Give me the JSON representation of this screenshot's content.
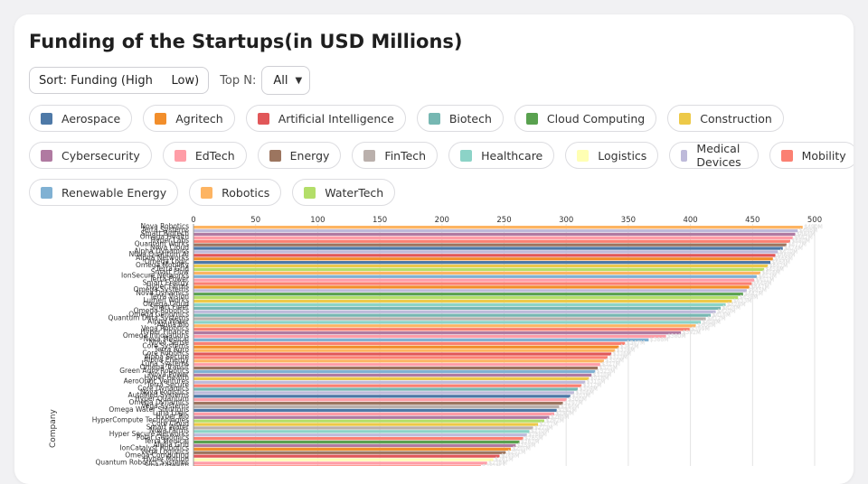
{
  "title": "Funding of the Startups(in USD Millions)",
  "controls": {
    "sort_label": "Sort: Funding (High     Low)",
    "topn_label": "Top N:",
    "topn_value": "All"
  },
  "legend": [
    {
      "name": "Aerospace",
      "color": "#4e79a7"
    },
    {
      "name": "Agritech",
      "color": "#f28e2b"
    },
    {
      "name": "Artificial Intelligence",
      "color": "#e15759"
    },
    {
      "name": "Biotech",
      "color": "#76b7b2"
    },
    {
      "name": "Cloud Computing",
      "color": "#59a14f"
    },
    {
      "name": "Construction",
      "color": "#edc948"
    },
    {
      "name": "Cybersecurity",
      "color": "#b07aa1"
    },
    {
      "name": "EdTech",
      "color": "#ff9da7"
    },
    {
      "name": "Energy",
      "color": "#9c755f"
    },
    {
      "name": "FinTech",
      "color": "#bab0ac"
    },
    {
      "name": "Healthcare",
      "color": "#8cd3c7"
    },
    {
      "name": "Logistics",
      "color": "#ffffb3"
    },
    {
      "name": "Medical Devices",
      "color": "#bebada"
    },
    {
      "name": "Mobility",
      "color": "#fb8072"
    },
    {
      "name": "Renewable Energy",
      "color": "#80b1d3"
    },
    {
      "name": "Robotics",
      "color": "#fdb462"
    },
    {
      "name": "WaterTech",
      "color": "#b3de69"
    }
  ],
  "chart_data": {
    "type": "bar",
    "orientation": "horizontal",
    "title": "Funding of the Startups(in USD Millions)",
    "xlabel": "",
    "ylabel": "Company",
    "xlim": [
      0,
      500
    ],
    "xticks": [
      0,
      50,
      100,
      150,
      200,
      250,
      300,
      350,
      400,
      450,
      500
    ],
    "sort": "descending",
    "series": [
      {
        "name": "Nova Robotics",
        "industry": "Robotics",
        "value": 490
      },
      {
        "name": "Terra Systems",
        "industry": "Medical Devices",
        "value": 486
      },
      {
        "name": "Smart Biotech",
        "industry": "Cybersecurity",
        "value": 484
      },
      {
        "name": "Omega Health",
        "industry": "EdTech",
        "value": 482
      },
      {
        "name": "Hyper Labs",
        "industry": "Mobility",
        "value": 480
      },
      {
        "name": "Quantum Works",
        "industry": "Energy",
        "value": 477
      },
      {
        "name": "Nova Cloud",
        "industry": "Aerospace",
        "value": 474
      },
      {
        "name": "Alpha Dynamics",
        "industry": "Medical Devices",
        "value": 470
      },
      {
        "name": "Nova Quantum AI",
        "industry": "Artificial Intelligence",
        "value": 468
      },
      {
        "name": "Alpha Networks",
        "industry": "Agritech",
        "value": 466
      },
      {
        "name": "Omega Logic",
        "industry": "Aerospace",
        "value": 464
      },
      {
        "name": "Omega Mobility",
        "industry": "Construction",
        "value": 462
      },
      {
        "name": "Terra Grid",
        "industry": "WaterTech",
        "value": 459
      },
      {
        "name": "Smart Flow",
        "industry": "Robotics",
        "value": 456
      },
      {
        "name": "IonSecure Networks",
        "industry": "Renewable Energy",
        "value": 453
      },
      {
        "name": "Terra Power",
        "industry": "EdTech",
        "value": 451
      },
      {
        "name": "Smart Energy",
        "industry": "Mobility",
        "value": 449
      },
      {
        "name": "Hyper Farms",
        "industry": "Agritech",
        "value": 447
      },
      {
        "name": "Omega Systems",
        "industry": "Medical Devices",
        "value": 445
      },
      {
        "name": "Nova Dynamics",
        "industry": "Cloud Computing",
        "value": 442
      },
      {
        "name": "Terra Vision",
        "industry": "WaterTech",
        "value": 438
      },
      {
        "name": "Lumen Works",
        "industry": "Construction",
        "value": 433
      },
      {
        "name": "Omega Cloud",
        "industry": "Healthcare",
        "value": 428
      },
      {
        "name": "Smart Fleet",
        "industry": "Biotech",
        "value": 424
      },
      {
        "name": "Omega Robotics",
        "industry": "Medical Devices",
        "value": 420
      },
      {
        "name": "Omega Genomics",
        "industry": "Biotech",
        "value": 416
      },
      {
        "name": "Quantum Data Systems",
        "industry": "FinTech",
        "value": 412
      },
      {
        "name": "Alpha Water",
        "industry": "Healthcare",
        "value": 408
      },
      {
        "name": "Alpha Bio",
        "industry": "Robotics",
        "value": 404
      },
      {
        "name": "Vega Robotics",
        "industry": "Mobility",
        "value": 399
      },
      {
        "name": "Hyper Finance",
        "industry": "Cybersecurity",
        "value": 392
      },
      {
        "name": "Omega Innovations",
        "industry": "EdTech",
        "value": 380
      },
      {
        "name": "Nova Medical",
        "industry": "Renewable Energy",
        "value": 366
      },
      {
        "name": "Nova Sense",
        "industry": "Mobility",
        "value": 347
      },
      {
        "name": "Core Systems",
        "industry": "Agritech",
        "value": 342
      },
      {
        "name": "Terra Agro",
        "industry": "Robotics",
        "value": 339
      },
      {
        "name": "Core Robotics",
        "industry": "Artificial Intelligence",
        "value": 336
      },
      {
        "name": "Alpha Secure",
        "industry": "Mobility",
        "value": 333
      },
      {
        "name": "Alpha Energy",
        "industry": "Robotics",
        "value": 330
      },
      {
        "name": "Luna Systems",
        "industry": "EdTech",
        "value": 327
      },
      {
        "name": "Omega Transit",
        "industry": "Energy",
        "value": 325
      },
      {
        "name": "Green Agro Robotics",
        "industry": "Renewable Energy",
        "value": 323
      },
      {
        "name": "Nova Power",
        "industry": "Cybersecurity",
        "value": 320
      },
      {
        "name": "Hyper Health",
        "industry": "Construction",
        "value": 318
      },
      {
        "name": "AeroOptic Ventures",
        "industry": "Medical Devices",
        "value": 315
      },
      {
        "name": "Terra Secure",
        "industry": "Mobility",
        "value": 312
      },
      {
        "name": "Core Dynamics",
        "industry": "Biotech",
        "value": 309
      },
      {
        "name": "Nova Logistics",
        "industry": "Medical Devices",
        "value": 306
      },
      {
        "name": "AutoMed Systems",
        "industry": "Aerospace",
        "value": 303
      },
      {
        "name": "Hyper Quantum",
        "industry": "EdTech",
        "value": 300
      },
      {
        "name": "Omega Dynamics",
        "industry": "Energy",
        "value": 297
      },
      {
        "name": "Vega Systems",
        "industry": "FinTech",
        "value": 294
      },
      {
        "name": "Omega Water Solutions",
        "industry": "Aerospace",
        "value": 292
      },
      {
        "name": "Luna Logic",
        "industry": "EdTech",
        "value": 290
      },
      {
        "name": "Hyper Bio",
        "industry": "Cybersecurity",
        "value": 286
      },
      {
        "name": "HyperCompute Technologies",
        "industry": "WaterTech",
        "value": 282
      },
      {
        "name": "Core Cloud",
        "industry": "Construction",
        "value": 277
      },
      {
        "name": "Smart Water",
        "industry": "FinTech",
        "value": 273
      },
      {
        "name": "Nova Farms",
        "industry": "Healthcare",
        "value": 270
      },
      {
        "name": "Hyper Secure Networks",
        "industry": "Medical Devices",
        "value": 268
      },
      {
        "name": "Polar Genomics",
        "industry": "Mobility",
        "value": 265
      },
      {
        "name": "Terra Medical",
        "industry": "Cloud Computing",
        "value": 262
      },
      {
        "name": "Alpha Grid",
        "industry": "Cybersecurity",
        "value": 259
      },
      {
        "name": "IonCatalyst Robotics",
        "industry": "Agritech",
        "value": 255
      },
      {
        "name": "Vega Logistics",
        "industry": "Energy",
        "value": 251
      },
      {
        "name": "Omega Computing",
        "industry": "Artificial Intelligence",
        "value": 246
      },
      {
        "name": "Hyper Motion",
        "industry": "Logistics",
        "value": 241
      },
      {
        "name": "Quantum Robotics Systems",
        "industry": "EdTech",
        "value": 236
      },
      {
        "name": "Smart Health",
        "industry": "Mobility",
        "value": 231
      },
      {
        "name": "Hyper Vision",
        "industry": "Robotics",
        "value": 227
      }
    ]
  }
}
